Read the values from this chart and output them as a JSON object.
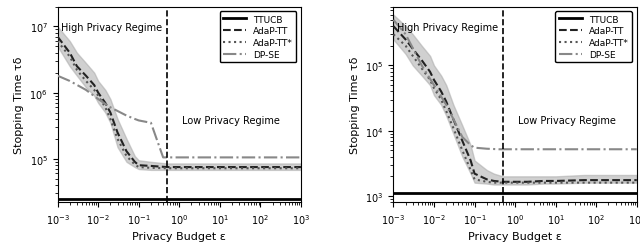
{
  "xlim": [
    0.001,
    1000.0
  ],
  "vline_x": 0.5,
  "high_privacy_label": "High Privacy Regime",
  "low_privacy_label": "Low Privacy Regime",
  "xlabel": "Privacy Budget ε",
  "ylabel": "Stopping Time τδ",
  "plot1": {
    "ylim": [
      22000.0,
      20000000.0
    ],
    "ttucb_y": 25000.0,
    "adap_tt_x": [
      0.001,
      0.002,
      0.003,
      0.005,
      0.008,
      0.01,
      0.015,
      0.02,
      0.03,
      0.05,
      0.08,
      0.1,
      0.2,
      0.5,
      1.0,
      2.0,
      5.0,
      10.0,
      100.0,
      1000.0
    ],
    "adap_tt_y": [
      7000000.0,
      4000000.0,
      2500000.0,
      1800000.0,
      1300000.0,
      1000000.0,
      700000.0,
      500000.0,
      250000.0,
      130000.0,
      90000.0,
      80000.0,
      78000.0,
      75000.0,
      75000.0,
      75000.0,
      75000.0,
      75000.0,
      75000.0,
      75000.0
    ],
    "adap_tt_ylo": [
      5000000.0,
      2500000.0,
      1800000.0,
      1200000.0,
      900000.0,
      700000.0,
      500000.0,
      350000.0,
      150000.0,
      90000.0,
      75000.0,
      70000.0,
      68000.0,
      68000.0,
      68000.0,
      68000.0,
      68000.0,
      68000.0,
      68000.0,
      68000.0
    ],
    "adap_tt_yhi": [
      10000000.0,
      6000000.0,
      4000000.0,
      2800000.0,
      2000000.0,
      1500000.0,
      1100000.0,
      800000.0,
      400000.0,
      200000.0,
      110000.0,
      95000.0,
      90000.0,
      85000.0,
      85000.0,
      85000.0,
      85000.0,
      85000.0,
      85000.0,
      85000.0
    ],
    "adap_ttstar_x": [
      0.001,
      0.002,
      0.003,
      0.005,
      0.008,
      0.01,
      0.015,
      0.02,
      0.03,
      0.05,
      0.08,
      0.1,
      0.2,
      0.5,
      1.0,
      100.0,
      1000.0
    ],
    "adap_ttstar_y": [
      6000000.0,
      3500000.0,
      2200000.0,
      1500000.0,
      1100000.0,
      900000.0,
      600000.0,
      400000.0,
      200000.0,
      110000.0,
      82000.0,
      75000.0,
      73000.0,
      72000.0,
      72000.0,
      72000.0,
      72000.0
    ],
    "dp_se_x": [
      0.001,
      0.002,
      0.005,
      0.01,
      0.02,
      0.05,
      0.08,
      0.1,
      0.2,
      0.4,
      0.5,
      1.0,
      2.0,
      5.0,
      10.0,
      100.0,
      1000.0
    ],
    "dp_se_y": [
      1800000.0,
      1500000.0,
      1100000.0,
      800000.0,
      600000.0,
      450000.0,
      400000.0,
      380000.0,
      350000.0,
      105000.0,
      105000.0,
      105000.0,
      105000.0,
      105000.0,
      105000.0,
      105000.0,
      105000.0
    ]
  },
  "plot2": {
    "ylim": [
      800.0,
      800000.0
    ],
    "ttucb_y": 1100.0,
    "adap_tt_x": [
      0.001,
      0.002,
      0.003,
      0.005,
      0.008,
      0.01,
      0.015,
      0.02,
      0.03,
      0.05,
      0.08,
      0.1,
      0.2,
      0.3,
      0.5,
      1.0,
      2.0,
      5.0,
      10.0,
      50.0,
      100.0,
      1000.0
    ],
    "adap_tt_y": [
      400000.0,
      250000.0,
      180000.0,
      120000.0,
      80000.0,
      60000.0,
      40000.0,
      28000.0,
      15000.0,
      7000.0,
      3500.0,
      2200.0,
      1800.0,
      1700.0,
      1650.0,
      1650.0,
      1650.0,
      1700.0,
      1700.0,
      1750.0,
      1750.0,
      1750.0
    ],
    "adap_tt_ylo": [
      250000.0,
      150000.0,
      100000.0,
      70000.0,
      50000.0,
      35000.0,
      25000.0,
      17000.0,
      9000.0,
      4000.0,
      2200.0,
      1600.0,
      1550.0,
      1500.0,
      1500.0,
      1500.0,
      1500.0,
      1550.0,
      1550.0,
      1600.0,
      1600.0,
      1600.0
    ],
    "adap_tt_yhi": [
      600000.0,
      400000.0,
      300000.0,
      200000.0,
      140000.0,
      100000.0,
      70000.0,
      50000.0,
      25000.0,
      12000.0,
      6000.0,
      3500.0,
      2500.0,
      2200.0,
      2000.0,
      2000.0,
      2000.0,
      2000.0,
      2000.0,
      2100.0,
      2100.0,
      2100.0
    ],
    "adap_ttstar_x": [
      0.001,
      0.002,
      0.003,
      0.005,
      0.008,
      0.01,
      0.015,
      0.02,
      0.03,
      0.05,
      0.08,
      0.1,
      0.2,
      0.3,
      0.5,
      1.0,
      100.0,
      1000.0
    ],
    "adap_ttstar_y": [
      300000.0,
      200000.0,
      140000.0,
      90000.0,
      60000.0,
      45000.0,
      30000.0,
      20000.0,
      11000.0,
      5000.0,
      2500.0,
      1800.0,
      1650.0,
      1600.0,
      1600.0,
      1600.0,
      1600.0,
      1600.0
    ],
    "dp_se_x": [
      0.001,
      0.002,
      0.005,
      0.01,
      0.02,
      0.05,
      0.08,
      0.1,
      0.2,
      0.4,
      0.5,
      1.0,
      2.0,
      5.0,
      10.0,
      50.0,
      100.0,
      1000.0
    ],
    "dp_se_y": [
      500000.0,
      300000.0,
      100000.0,
      50000.0,
      25000.0,
      8000.0,
      6000.0,
      5500.0,
      5300.0,
      5200.0,
      5200.0,
      5200.0,
      5200.0,
      5200.0,
      5200.0,
      5200.0,
      5200.0,
      5200.0
    ]
  },
  "colors": {
    "ttucb": "#000000",
    "adap_tt": "#222222",
    "adap_ttstar": "#555555",
    "dp_se": "#888888",
    "fill": "#aaaaaa"
  },
  "line_styles": {
    "ttucb": "-",
    "adap_tt": "--",
    "adap_ttstar": ":",
    "dp_se": "-."
  },
  "line_widths": {
    "ttucb": 2.0,
    "adap_tt": 1.5,
    "adap_ttstar": 1.5,
    "dp_se": 1.5
  }
}
